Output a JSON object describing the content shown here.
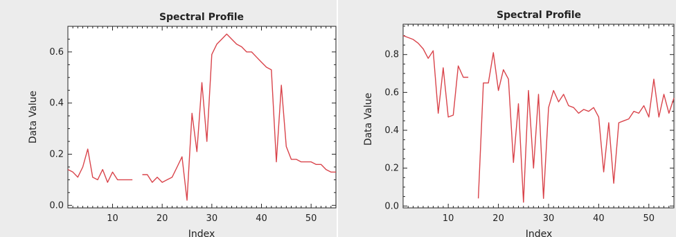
{
  "colors": {
    "line": "#d9434a",
    "plot_bg": "#ffffff",
    "panel_bg": "#ececec",
    "axis": "#222222"
  },
  "chart_data": [
    {
      "type": "line",
      "title": "Spectral Profile",
      "xlabel": "Index",
      "ylabel": "Data Value",
      "xlim": [
        1,
        55
      ],
      "ylim": [
        -0.01,
        0.7
      ],
      "xticks": [
        10,
        20,
        30,
        40,
        50
      ],
      "yticks": [
        0.0,
        0.2,
        0.4,
        0.6
      ],
      "ytick_labels": [
        "0.0",
        "0.2",
        "0.4",
        "0.6"
      ],
      "grid": false,
      "series": [
        {
          "x": [
            1,
            2,
            3,
            4,
            5,
            6,
            7,
            8,
            9,
            10,
            11,
            12,
            13,
            14,
            15,
            16,
            17,
            18,
            19,
            20,
            21,
            22,
            23,
            24,
            25,
            26,
            27,
            28,
            29,
            30,
            31,
            32,
            33,
            34,
            35,
            36,
            37,
            38,
            39,
            40,
            41,
            42,
            43,
            44,
            45,
            46,
            47,
            48,
            49,
            50,
            51,
            52,
            53,
            54,
            55
          ],
          "y": [
            0.14,
            0.13,
            0.11,
            0.15,
            0.22,
            0.11,
            0.1,
            0.14,
            0.09,
            0.13,
            0.1,
            0.1,
            0.1,
            0.1,
            null,
            0.12,
            0.12,
            0.09,
            0.11,
            0.09,
            0.1,
            0.11,
            0.15,
            0.19,
            0.02,
            0.36,
            0.21,
            0.48,
            0.25,
            0.59,
            0.63,
            0.65,
            0.67,
            0.65,
            0.63,
            0.62,
            0.6,
            0.6,
            0.58,
            0.56,
            0.54,
            0.53,
            0.17,
            0.47,
            0.23,
            0.18,
            0.18,
            0.17,
            0.17,
            0.17,
            0.16,
            0.16,
            0.14,
            0.13,
            0.13
          ]
        }
      ]
    },
    {
      "type": "line",
      "title": "Spectral Profile",
      "xlabel": "Index",
      "ylabel": "Data Value",
      "xlim": [
        1,
        55
      ],
      "ylim": [
        -0.01,
        0.96
      ],
      "xticks": [
        10,
        20,
        30,
        40,
        50
      ],
      "yticks": [
        0.0,
        0.2,
        0.4,
        0.6,
        0.8
      ],
      "ytick_labels": [
        "0.0",
        "0.2",
        "0.4",
        "0.6",
        "0.8"
      ],
      "grid": false,
      "series": [
        {
          "x": [
            1,
            2,
            3,
            4,
            5,
            6,
            7,
            8,
            9,
            10,
            11,
            12,
            13,
            14,
            15,
            16,
            17,
            18,
            19,
            20,
            21,
            22,
            23,
            24,
            25,
            26,
            27,
            28,
            29,
            30,
            31,
            32,
            33,
            34,
            35,
            36,
            37,
            38,
            39,
            40,
            41,
            42,
            43,
            44,
            45,
            46,
            47,
            48,
            49,
            50,
            51,
            52,
            53,
            54,
            55
          ],
          "y": [
            0.9,
            0.89,
            0.88,
            0.86,
            0.83,
            0.78,
            0.82,
            0.49,
            0.73,
            0.47,
            0.48,
            0.74,
            0.68,
            0.68,
            null,
            0.04,
            0.65,
            0.65,
            0.81,
            0.61,
            0.72,
            0.67,
            0.23,
            0.54,
            0.02,
            0.61,
            0.2,
            0.59,
            0.04,
            0.52,
            0.61,
            0.55,
            0.59,
            0.53,
            0.52,
            0.49,
            0.51,
            0.5,
            0.52,
            0.47,
            0.18,
            0.44,
            0.12,
            0.44,
            0.45,
            0.46,
            0.5,
            0.49,
            0.53,
            0.47,
            0.67,
            0.47,
            0.59,
            0.49,
            0.57
          ]
        }
      ]
    }
  ]
}
